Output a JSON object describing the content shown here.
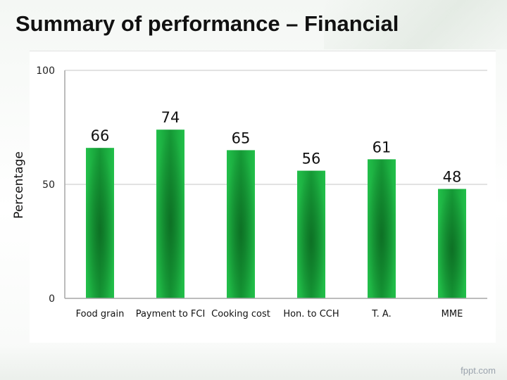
{
  "slide": {
    "title": "Summary of performance – Financial",
    "watermark": "fppt.com"
  },
  "colors": {
    "bar_light": "#22c04a",
    "bar_dark": "#0f7a28",
    "grid": "#d9d9d9",
    "axis": "#a6a6a6"
  },
  "chart_data": {
    "type": "bar",
    "title": "",
    "xlabel": "",
    "ylabel": "Percentage",
    "categories": [
      "Food grain",
      "Payment to FCI",
      "Cooking cost",
      "Hon. to CCH",
      "T. A.",
      "MME"
    ],
    "values": [
      66,
      74,
      65,
      56,
      61,
      48
    ],
    "data_labels": [
      "66",
      "74",
      "65",
      "56",
      "61",
      "48"
    ],
    "yticks": [
      0,
      50,
      100
    ],
    "ytick_labels": [
      "0",
      "50",
      "100"
    ],
    "ylim": [
      0,
      100
    ],
    "grid": true,
    "legend": "none"
  }
}
